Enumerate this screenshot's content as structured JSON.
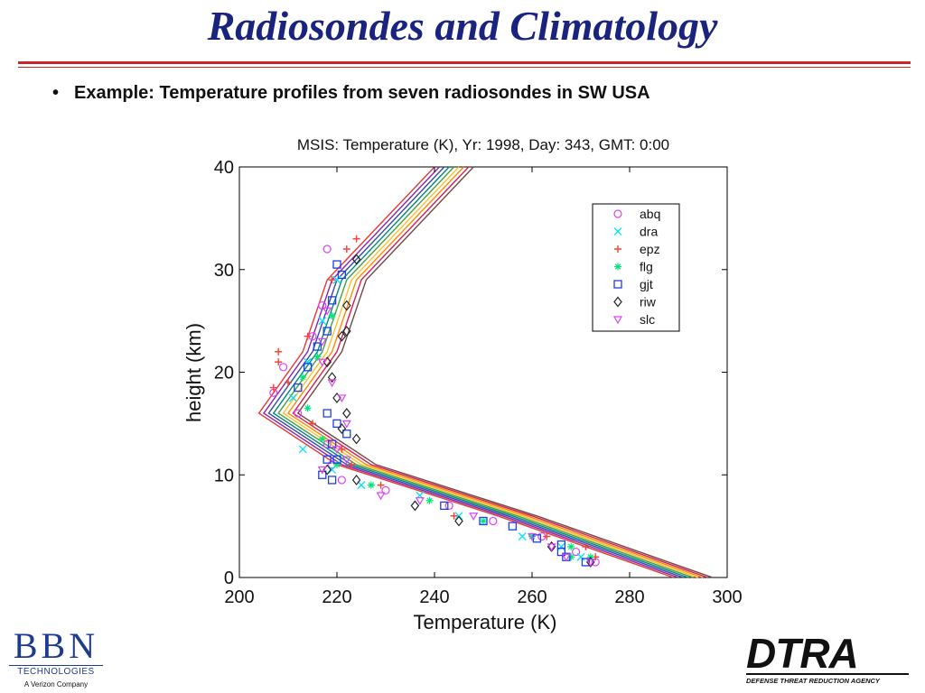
{
  "slide": {
    "title": "Radiosondes and Climatology",
    "bullet": "•",
    "bullet_text": "Example: Temperature profiles from seven radiosondes in SW USA"
  },
  "logos": {
    "bbn_mark": "BBN",
    "bbn_sub": "TECHNOLOGIES",
    "bbn_sub2": "A Verizon Company",
    "dtra_mark": "DTRA",
    "dtra_sub": "DEFENSE THREAT REDUCTION AGENCY"
  },
  "colors": {
    "title": "#1a237e",
    "rule": "#c62828"
  },
  "chart_data": {
    "type": "scatter",
    "title": "MSIS: Temperature (K),  Yr: 1998,  Day: 343,  GMT: 0:00",
    "xlabel": "Temperature (K)",
    "ylabel": "height (km)",
    "xlim": [
      200,
      300
    ],
    "ylim": [
      0,
      40
    ],
    "xticks": [
      200,
      220,
      240,
      260,
      280,
      300
    ],
    "yticks": [
      0,
      10,
      20,
      30,
      40
    ],
    "grid": false,
    "legend_position": "top-right",
    "model_profiles": {
      "base": [
        [
          291,
          0
        ],
        [
          255,
          6
        ],
        [
          222,
          11
        ],
        [
          206,
          16
        ],
        [
          215,
          22
        ],
        [
          220,
          29
        ],
        [
          232,
          35
        ],
        [
          242,
          40
        ]
      ],
      "temperature_offsets": [
        -2,
        -1,
        0,
        1,
        2,
        3,
        4,
        5,
        6
      ],
      "colors": [
        "#e53935",
        "#8e24aa",
        "#3949ab",
        "#00897b",
        "#43a047",
        "#fbc02d",
        "#fb8c00",
        "#d81b60",
        "#6d4c41"
      ]
    },
    "series": [
      {
        "name": "abq",
        "marker": "circle",
        "color": "#e040fb",
        "points": [
          [
            218,
            32.0
          ],
          [
            217,
            26.5
          ],
          [
            215,
            23.5
          ],
          [
            209,
            20.5
          ],
          [
            207,
            18.0
          ],
          [
            212,
            16.0
          ],
          [
            218,
            13.0
          ],
          [
            219,
            11.0
          ],
          [
            221,
            9.5
          ],
          [
            230,
            8.5
          ],
          [
            243,
            7.0
          ],
          [
            252,
            5.5
          ],
          [
            262,
            4.0
          ],
          [
            269,
            2.5
          ],
          [
            273,
            1.5
          ]
        ]
      },
      {
        "name": "dra",
        "marker": "x",
        "color": "#00e5ff",
        "points": [
          [
            220,
            29.0
          ],
          [
            217,
            25.0
          ],
          [
            214,
            21.0
          ],
          [
            211,
            17.5
          ],
          [
            213,
            12.5
          ],
          [
            219,
            10.5
          ],
          [
            225,
            9.0
          ],
          [
            237,
            8.0
          ],
          [
            245,
            6.0
          ],
          [
            258,
            4.0
          ],
          [
            266,
            3.0
          ],
          [
            270,
            2.0
          ]
        ]
      },
      {
        "name": "epz",
        "marker": "plus",
        "color": "#f44336",
        "points": [
          [
            222,
            32.0
          ],
          [
            224,
            33.0
          ],
          [
            219,
            29.0
          ],
          [
            214,
            23.5
          ],
          [
            208,
            22.0
          ],
          [
            208,
            21.0
          ],
          [
            210,
            19.0
          ],
          [
            207,
            18.5
          ],
          [
            215,
            15.0
          ],
          [
            221,
            12.5
          ],
          [
            223,
            11.0
          ],
          [
            229,
            9.0
          ],
          [
            244,
            6.0
          ],
          [
            263,
            4.0
          ],
          [
            271,
            3.0
          ],
          [
            273,
            2.0
          ]
        ]
      },
      {
        "name": "flg",
        "marker": "asterisk",
        "color": "#00e676",
        "points": [
          [
            219,
            25.5
          ],
          [
            216,
            21.5
          ],
          [
            213,
            19.5
          ],
          [
            214,
            16.5
          ],
          [
            217,
            13.5
          ],
          [
            220,
            11.0
          ],
          [
            227,
            9.0
          ],
          [
            239,
            7.5
          ],
          [
            250,
            5.5
          ],
          [
            260,
            4.0
          ],
          [
            268,
            3.0
          ],
          [
            272,
            2.0
          ],
          [
            268,
            2.0
          ]
        ]
      },
      {
        "name": "gjt",
        "marker": "square",
        "color": "#1e3fe6",
        "points": [
          [
            220,
            30.5
          ],
          [
            221,
            29.5
          ],
          [
            219,
            27.0
          ],
          [
            218,
            24.0
          ],
          [
            216,
            22.5
          ],
          [
            214,
            20.5
          ],
          [
            212,
            18.5
          ],
          [
            218,
            16.0
          ],
          [
            220,
            15.0
          ],
          [
            222,
            14.0
          ],
          [
            219,
            13.0
          ],
          [
            218,
            11.5
          ],
          [
            220,
            11.5
          ],
          [
            217,
            10.0
          ],
          [
            219,
            9.5
          ],
          [
            242,
            7.0
          ],
          [
            250,
            5.5
          ],
          [
            256,
            5.0
          ],
          [
            261,
            3.8
          ],
          [
            266,
            3.2
          ],
          [
            266,
            2.5
          ],
          [
            267,
            2.0
          ],
          [
            271,
            1.5
          ]
        ]
      },
      {
        "name": "riw",
        "marker": "diamond",
        "color": "#222222",
        "points": [
          [
            224,
            31.0
          ],
          [
            222,
            26.5
          ],
          [
            222,
            24.0
          ],
          [
            221,
            23.5
          ],
          [
            218,
            21.0
          ],
          [
            219,
            19.5
          ],
          [
            220,
            17.5
          ],
          [
            222,
            16.0
          ],
          [
            221,
            14.5
          ],
          [
            224,
            13.5
          ],
          [
            218,
            10.5
          ],
          [
            224,
            9.5
          ],
          [
            236,
            7.0
          ],
          [
            245,
            5.5
          ],
          [
            264,
            3.0
          ],
          [
            272,
            1.5
          ]
        ]
      },
      {
        "name": "slc",
        "marker": "triangle-down",
        "color": "#e040fb",
        "points": [
          [
            218,
            26.0
          ],
          [
            217,
            23.0
          ],
          [
            217,
            21.0
          ],
          [
            219,
            19.0
          ],
          [
            221,
            17.5
          ],
          [
            222,
            15.0
          ],
          [
            220,
            12.5
          ],
          [
            222,
            11.5
          ],
          [
            217,
            10.5
          ],
          [
            229,
            8.0
          ],
          [
            237,
            7.5
          ],
          [
            248,
            6.0
          ],
          [
            260,
            4.0
          ],
          [
            264,
            3.0
          ],
          [
            267,
            2.0
          ],
          [
            272,
            1.5
          ]
        ]
      }
    ]
  }
}
